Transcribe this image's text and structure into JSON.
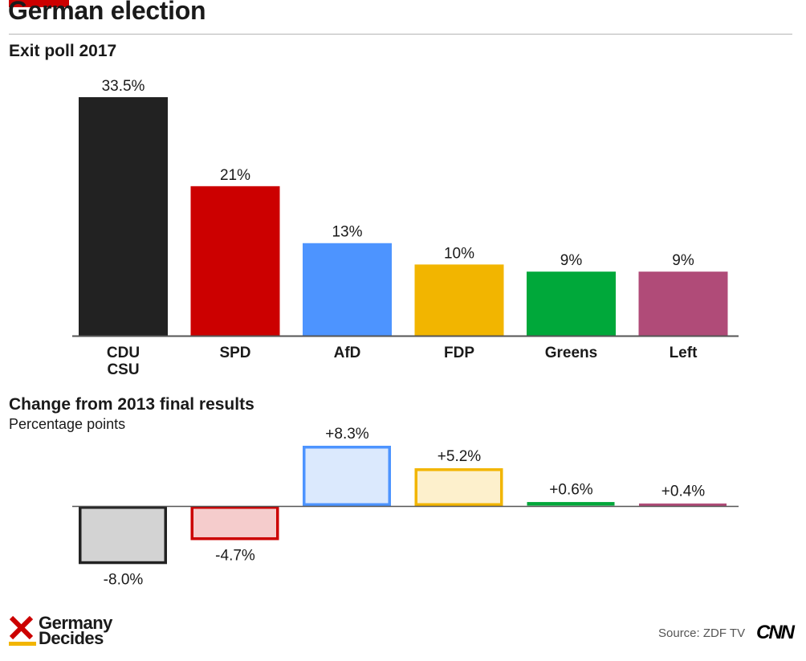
{
  "header": {
    "title": "German election"
  },
  "charts": {
    "top_subtitle": "Exit poll 2017",
    "bottom_subtitle": "Change from 2013 final results",
    "bottom_note": "Percentage points"
  },
  "chart_data": [
    {
      "type": "bar",
      "title": "Exit poll 2017",
      "categories": [
        "CDU\nCSU",
        "SPD",
        "AfD",
        "FDP",
        "Greens",
        "Left"
      ],
      "values": [
        33.5,
        21,
        13,
        10,
        9,
        9
      ],
      "data_labels": [
        "33.5%",
        "21%",
        "13%",
        "10%",
        "9%",
        "9%"
      ],
      "ylim": [
        0,
        33.5
      ],
      "grid": false,
      "colors": [
        "#222222",
        "#cc0000",
        "#4d94ff",
        "#f2b500",
        "#00a83a",
        "#b04b78"
      ]
    },
    {
      "type": "bar",
      "title": "Change from 2013 final results",
      "ylabel": "Percentage points",
      "categories": [
        "CDU\nCSU",
        "SPD",
        "AfD",
        "FDP",
        "Greens",
        "Left"
      ],
      "values": [
        -8.0,
        -4.7,
        8.3,
        5.2,
        0.6,
        0.4
      ],
      "data_labels": [
        "-8.0%",
        "-4.7%",
        "+8.3%",
        "+5.2%",
        "+0.6%",
        "+0.4%"
      ],
      "grid": false,
      "stroke_colors": [
        "#222222",
        "#cc0000",
        "#4d94ff",
        "#f2b500",
        "#00a83a",
        "#b04b78"
      ],
      "fill_colors": [
        "#d3d3d3",
        "#f5cccc",
        "#dbe9fd",
        "#fdf0cc",
        "#ccedd8",
        "#efdbe4"
      ]
    }
  ],
  "footer": {
    "brand_line1": "Germany",
    "brand_line2": "Decides",
    "source": "Source: ZDF TV",
    "logo": "CNN",
    "brand_colors": {
      "x_mark": "#cc0000",
      "underline": "#f2b500"
    }
  }
}
